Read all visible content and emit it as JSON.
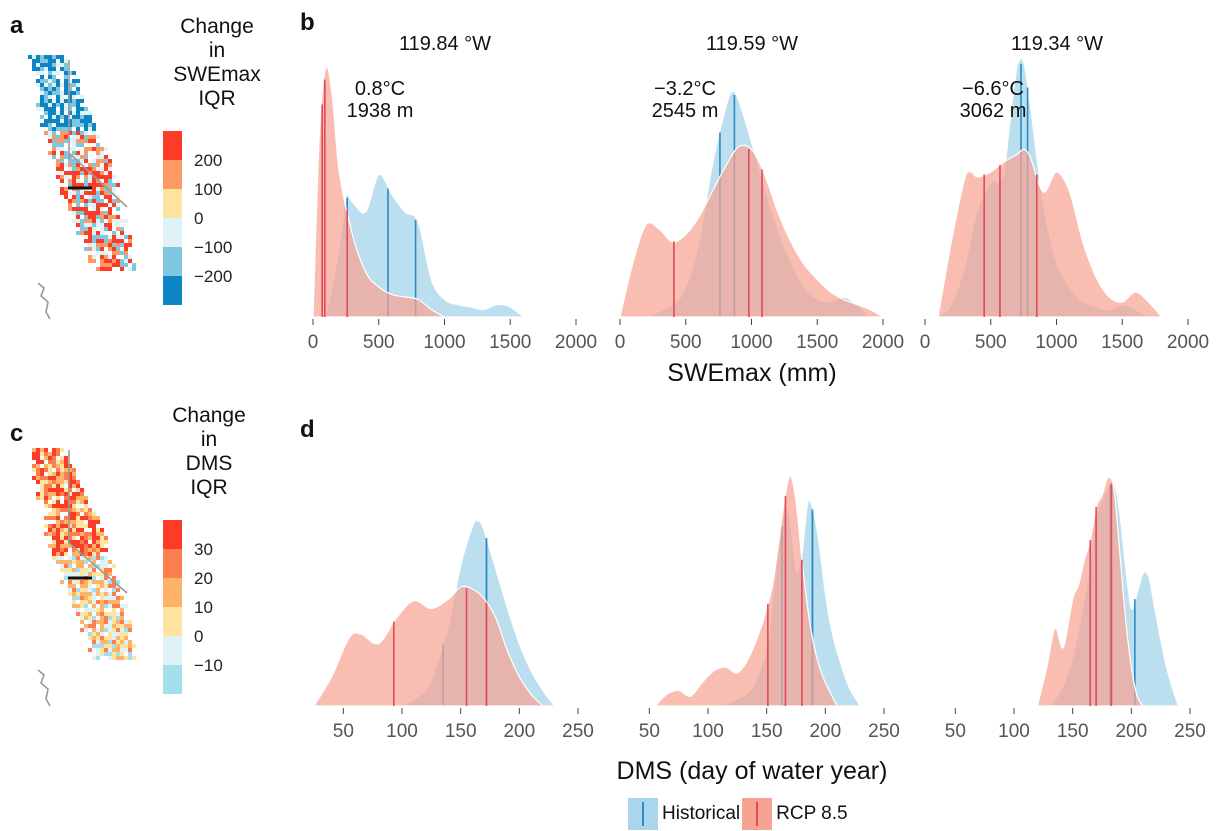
{
  "panels": {
    "a": "a",
    "b": "b",
    "c": "c",
    "d": "d"
  },
  "colors": {
    "historical_fill": "#a9d6ec",
    "historical_line": "#2b8cc4",
    "rcp_fill": "#f7a393",
    "rcp_line": "#e2495b"
  },
  "legend_a": {
    "title": [
      "Change",
      "in",
      "SWEmax",
      "IQR"
    ],
    "items": [
      {
        "label": "200",
        "color": "#fd3c27"
      },
      {
        "label": "100",
        "color": "#fd9a63"
      },
      {
        "label": "0",
        "color": "#fde3a0"
      },
      {
        "label": "−100",
        "color": "#dff3f6"
      },
      {
        "label": "−200",
        "color": "#7fc6e0"
      },
      {
        "label": "",
        "color": "#0d84c3"
      }
    ]
  },
  "legend_c": {
    "title": [
      "Change",
      "in",
      "DMS",
      "IQR"
    ],
    "items": [
      {
        "label": "30",
        "color": "#fd3c27"
      },
      {
        "label": "20",
        "color": "#fd7f4f"
      },
      {
        "label": "10",
        "color": "#fdb46a"
      },
      {
        "label": "0",
        "color": "#fde4a1"
      },
      {
        "label": "−10",
        "color": "#dff3f6"
      },
      {
        "label": "",
        "color": "#a5dfec"
      }
    ]
  },
  "legend_bottom": {
    "historical": "Historical",
    "rcp": "RCP 8.5"
  },
  "chart_data": [
    {
      "type": "area",
      "panel": "b",
      "xlabel": "SWEmax (mm)",
      "xlim": [
        0,
        2000
      ],
      "xticks": [
        0,
        500,
        1000,
        1500,
        2000
      ],
      "facets": [
        {
          "title": "119.84 °W",
          "annotation": [
            "0.8°C",
            "1938 m"
          ],
          "series": [
            {
              "name": "Historical",
              "x": [
                0,
                100,
                200,
                250,
                300,
                400,
                500,
                600,
                700,
                800,
                900,
                1000,
                1100,
                1200,
                1300,
                1400,
                1500,
                1600
              ],
              "y": [
                0.0,
                0.02,
                0.28,
                0.48,
                0.46,
                0.42,
                0.57,
                0.49,
                0.42,
                0.38,
                0.15,
                0.07,
                0.05,
                0.04,
                0.03,
                0.05,
                0.04,
                0.0
              ],
              "quartiles": [
                260,
                570,
                780
              ]
            },
            {
              "name": "RCP 8.5",
              "x": [
                0,
                50,
                100,
                150,
                200,
                300,
                400,
                500,
                600,
                700,
                800,
                900,
                1000
              ],
              "y": [
                0.0,
                0.75,
                1.0,
                0.87,
                0.58,
                0.33,
                0.18,
                0.12,
                0.09,
                0.08,
                0.07,
                0.03,
                0.0
              ],
              "quartiles": [
                70,
                90,
                260
              ]
            }
          ]
        },
        {
          "title": "119.59 °W",
          "annotation": [
            "−3.2°C",
            "2545 m"
          ],
          "series": [
            {
              "name": "Historical",
              "x": [
                200,
                400,
                500,
                600,
                700,
                800,
                850,
                900,
                1000,
                1100,
                1200,
                1300,
                1400,
                1500,
                1600,
                1700,
                1800,
                1900
              ],
              "y": [
                0.0,
                0.05,
                0.12,
                0.3,
                0.6,
                0.83,
                0.9,
                0.87,
                0.7,
                0.52,
                0.35,
                0.22,
                0.12,
                0.07,
                0.06,
                0.08,
                0.05,
                0.0
              ],
              "quartiles": [
                760,
                870,
                1080
              ]
            },
            {
              "name": "RCP 8.5",
              "x": [
                0,
                100,
                200,
                300,
                400,
                500,
                600,
                700,
                800,
                900,
                1000,
                1100,
                1200,
                1300,
                1400,
                1500,
                1600,
                1700,
                1800,
                1900,
                2000
              ],
              "y": [
                0.0,
                0.22,
                0.37,
                0.35,
                0.3,
                0.33,
                0.4,
                0.5,
                0.6,
                0.68,
                0.67,
                0.57,
                0.42,
                0.3,
                0.21,
                0.15,
                0.1,
                0.07,
                0.05,
                0.03,
                0.0
              ],
              "quartiles": [
                410,
                980,
                1080
              ]
            }
          ]
        },
        {
          "title": "119.34 °W",
          "annotation": [
            "−6.6°C",
            "3062 m"
          ],
          "series": [
            {
              "name": "Historical",
              "x": [
                100,
                200,
                300,
                400,
                500,
                550,
                600,
                650,
                700,
                750,
                800,
                900,
                1000,
                1100,
                1200,
                1300,
                1400,
                1500,
                1600,
                1700
              ],
              "y": [
                0.0,
                0.05,
                0.2,
                0.43,
                0.54,
                0.54,
                0.58,
                0.8,
                1.0,
                1.02,
                0.85,
                0.45,
                0.22,
                0.12,
                0.06,
                0.04,
                0.03,
                0.05,
                0.03,
                0.0
              ],
              "quartiles": [
                570,
                730,
                780
              ]
            },
            {
              "name": "RCP 8.5",
              "x": [
                100,
                200,
                300,
                350,
                400,
                500,
                600,
                700,
                750,
                800,
                900,
                1000,
                1100,
                1200,
                1300,
                1400,
                1500,
                1600,
                1700,
                1800
              ],
              "y": [
                0.0,
                0.3,
                0.55,
                0.58,
                0.56,
                0.58,
                0.62,
                0.65,
                0.67,
                0.64,
                0.5,
                0.58,
                0.5,
                0.3,
                0.16,
                0.08,
                0.06,
                0.1,
                0.06,
                0.0
              ],
              "quartiles": [
                450,
                570,
                850
              ]
            }
          ]
        }
      ]
    },
    {
      "type": "area",
      "panel": "d",
      "xlabel": "DMS (day of water year)",
      "xlim": [
        25,
        250
      ],
      "xticks": [
        50,
        100,
        150,
        200,
        250
      ],
      "facets": [
        {
          "series": [
            {
              "name": "Historical",
              "x": [
                100,
                120,
                130,
                140,
                150,
                160,
                165,
                170,
                180,
                190,
                200,
                210,
                220,
                230
              ],
              "y": [
                0.0,
                0.08,
                0.22,
                0.42,
                0.72,
                0.92,
                0.95,
                0.9,
                0.7,
                0.5,
                0.32,
                0.18,
                0.08,
                0.0
              ],
              "quartiles": [
                135,
                172,
                172
              ]
            },
            {
              "name": "RCP 8.5",
              "x": [
                25,
                40,
                55,
                65,
                80,
                95,
                110,
                125,
                140,
                150,
                160,
                170,
                180,
                190,
                200,
                210,
                220
              ],
              "y": [
                0.0,
                0.15,
                0.35,
                0.37,
                0.32,
                0.45,
                0.54,
                0.5,
                0.55,
                0.61,
                0.6,
                0.55,
                0.45,
                0.28,
                0.15,
                0.06,
                0.0
              ],
              "quartiles": [
                93,
                155,
                172
              ]
            }
          ]
        },
        {
          "series": [
            {
              "name": "Historical",
              "x": [
                110,
                130,
                140,
                150,
                155,
                160,
                165,
                170,
                175,
                180,
                185,
                190,
                195,
                200,
                205,
                210,
                220,
                230
              ],
              "y": [
                0.0,
                0.05,
                0.12,
                0.3,
                0.55,
                0.8,
                1.0,
                0.96,
                0.7,
                0.78,
                1.04,
                1.0,
                0.82,
                0.58,
                0.4,
                0.28,
                0.1,
                0.0
              ],
              "quartiles": [
                163,
                189,
                189
              ]
            },
            {
              "name": "RCP 8.5",
              "x": [
                55,
                65,
                75,
                85,
                95,
                105,
                115,
                125,
                135,
                145,
                150,
                155,
                160,
                165,
                170,
                175,
                180,
                185,
                190,
                195,
                200,
                210
              ],
              "y": [
                0.0,
                0.06,
                0.08,
                0.05,
                0.12,
                0.18,
                0.2,
                0.17,
                0.25,
                0.4,
                0.5,
                0.62,
                0.83,
                1.05,
                1.18,
                1.05,
                0.75,
                0.5,
                0.32,
                0.2,
                0.12,
                0.0
              ],
              "quartiles": [
                151,
                166,
                180
              ]
            }
          ]
        },
        {
          "series": [
            {
              "name": "Historical",
              "x": [
                130,
                140,
                150,
                160,
                165,
                170,
                175,
                180,
                185,
                190,
                195,
                200,
                205,
                210,
                215,
                220,
                230,
                240
              ],
              "y": [
                0.0,
                0.08,
                0.25,
                0.55,
                0.75,
                0.98,
                1.05,
                1.12,
                1.15,
                1.0,
                0.72,
                0.5,
                0.58,
                0.68,
                0.66,
                0.5,
                0.2,
                0.0
              ],
              "quartiles": [
                170,
                182,
                203
              ]
            },
            {
              "name": "RCP 8.5",
              "x": [
                120,
                128,
                135,
                142,
                150,
                155,
                160,
                165,
                170,
                175,
                180,
                185,
                190,
                195,
                200,
                205,
                210
              ],
              "y": [
                0.0,
                0.2,
                0.4,
                0.3,
                0.55,
                0.62,
                0.75,
                0.85,
                1.02,
                1.08,
                1.17,
                1.12,
                0.8,
                0.45,
                0.2,
                0.05,
                0.0
              ],
              "quartiles": [
                165,
                170,
                183
              ]
            }
          ]
        }
      ]
    }
  ]
}
